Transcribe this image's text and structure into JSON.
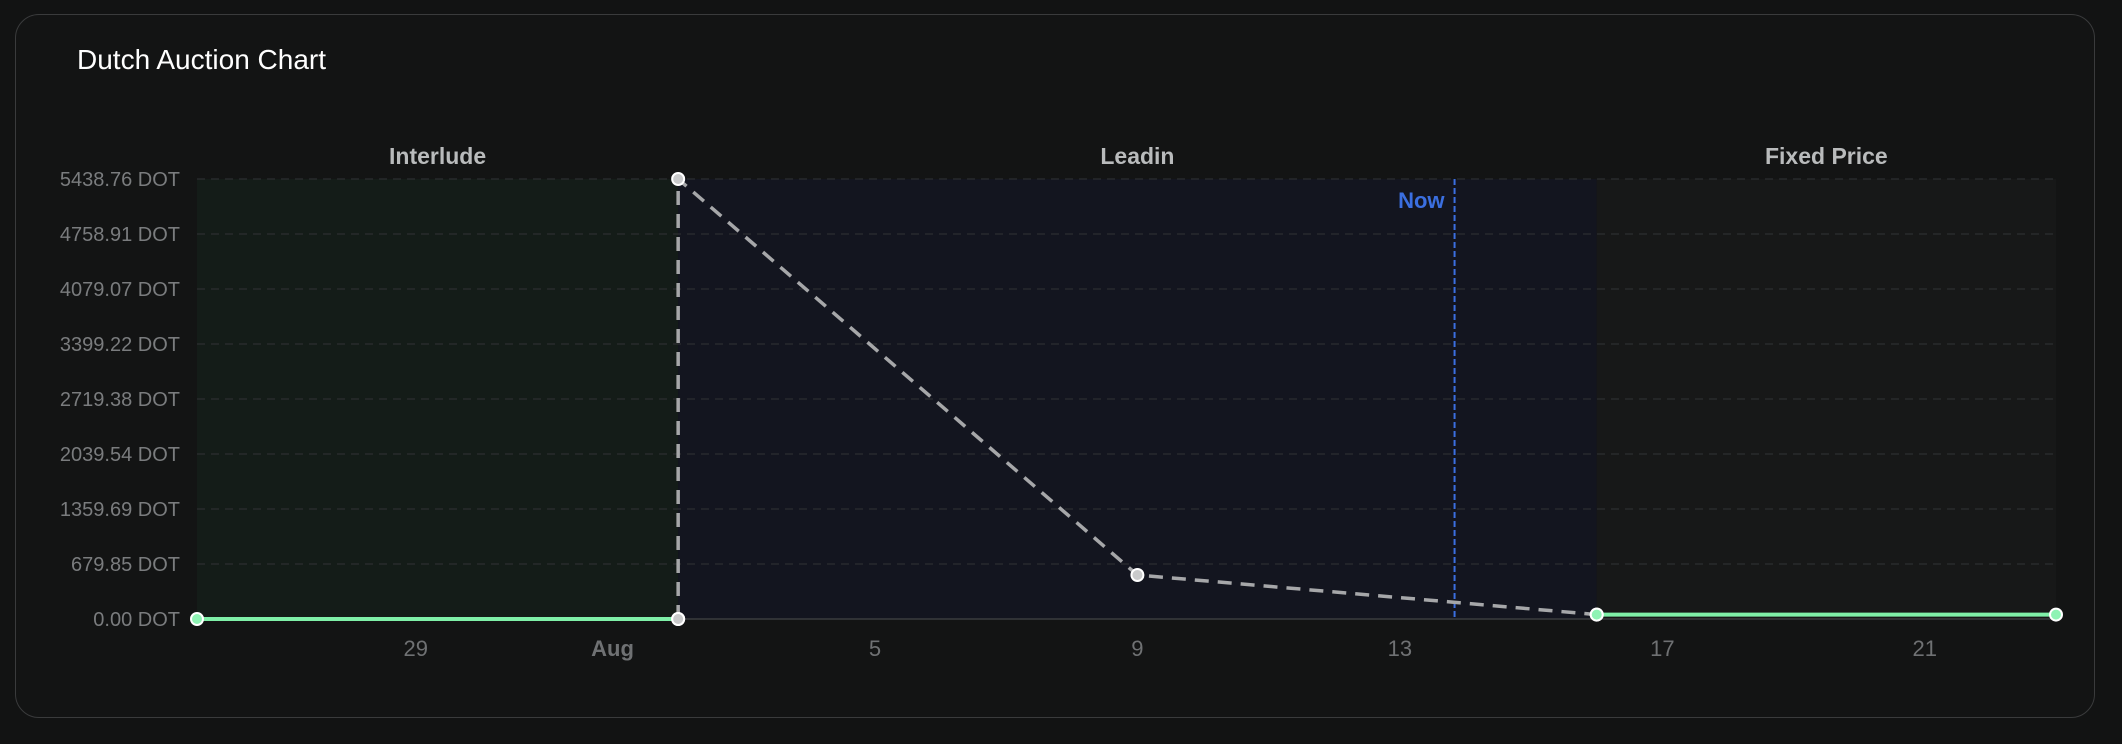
{
  "title": "Dutch Auction Chart",
  "chart_data": {
    "type": "line",
    "title": "Dutch Auction Chart",
    "xlabel": "",
    "ylabel": "",
    "y_unit": "DOT",
    "y_ticks": [
      "5438.76 DOT",
      "4758.91 DOT",
      "4079.07 DOT",
      "3399.22 DOT",
      "2719.38 DOT",
      "2039.54 DOT",
      "1359.69 DOT",
      "679.85 DOT",
      "0.00 DOT"
    ],
    "y_tick_values": [
      5438.76,
      4758.91,
      4079.07,
      3399.22,
      2719.38,
      2039.54,
      1359.69,
      679.85,
      0
    ],
    "ylim": [
      0,
      5438.76
    ],
    "x_ticks": [
      {
        "label": "29",
        "date": "2024-07-29",
        "bold": false
      },
      {
        "label": "Aug",
        "date": "2024-08-01",
        "bold": true
      },
      {
        "label": "5",
        "date": "2024-08-05",
        "bold": false
      },
      {
        "label": "9",
        "date": "2024-08-09",
        "bold": false
      },
      {
        "label": "13",
        "date": "2024-08-13",
        "bold": false
      },
      {
        "label": "17",
        "date": "2024-08-17",
        "bold": false
      },
      {
        "label": "21",
        "date": "2024-08-21",
        "bold": false
      }
    ],
    "xlim": [
      "2024-07-25 16:00",
      "2024-08-23 00:00"
    ],
    "grid": true,
    "phases": [
      {
        "name": "Interlude",
        "start": "2024-07-25 16:00",
        "end": "2024-08-02 00:00",
        "color": "#141c18"
      },
      {
        "name": "Leadin",
        "start": "2024-08-02 00:00",
        "end": "2024-08-16 00:00",
        "color": "#13151f"
      },
      {
        "name": "Fixed Price",
        "start": "2024-08-16 00:00",
        "end": "2024-08-23 00:00",
        "color": "#171818"
      }
    ],
    "now": {
      "label": "Now",
      "date": "2024-08-13 20:00",
      "color": "#3b6fe0"
    },
    "series": [
      {
        "style": "solid",
        "color": "#7ff0a8",
        "points": [
          {
            "x": "2024-07-25 16:00",
            "y": 0
          },
          {
            "x": "2024-08-02 00:00",
            "y": 0
          }
        ]
      },
      {
        "style": "dashed",
        "color": "#a6a7a9",
        "points": [
          {
            "x": "2024-08-02 00:00",
            "y": 0
          },
          {
            "x": "2024-08-02 00:00",
            "y": 5438.76
          },
          {
            "x": "2024-08-09 00:00",
            "y": 543.88
          },
          {
            "x": "2024-08-16 00:00",
            "y": 54.39
          }
        ]
      },
      {
        "style": "solid",
        "color": "#7ff0a8",
        "points": [
          {
            "x": "2024-08-16 00:00",
            "y": 54.39
          },
          {
            "x": "2024-08-23 00:00",
            "y": 54.39
          }
        ]
      }
    ]
  }
}
